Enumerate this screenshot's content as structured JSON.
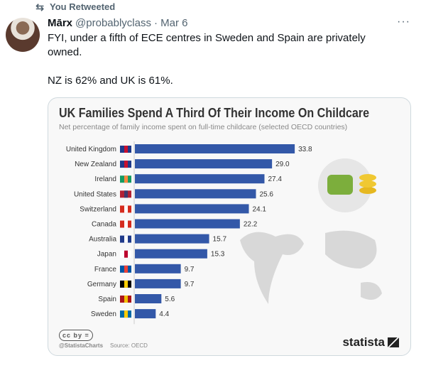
{
  "retweet": {
    "icon": "retweet-icon",
    "label": "You Retweeted"
  },
  "tweet": {
    "name": "Mārx",
    "handle": "@probablyclass",
    "date": "· Mar 6",
    "more": "···",
    "text": "FYI, under a fifth of ECE centres in Sweden and Spain are privately owned.\n\nNZ is 62% and UK is 61%."
  },
  "chart_data": {
    "type": "bar",
    "orientation": "horizontal",
    "title": "UK Families Spend A Third Of Their Income On Childcare",
    "subtitle": "Net percentage of family income spent on full-time childcare (selected OECD countries)",
    "categories": [
      "United Kingdom",
      "New Zealand",
      "Ireland",
      "United States",
      "Switzerland",
      "Canada",
      "Australia",
      "Japan",
      "France",
      "Germany",
      "Spain",
      "Sweden"
    ],
    "values": [
      33.8,
      29.0,
      27.4,
      25.6,
      24.1,
      22.2,
      15.7,
      15.3,
      9.7,
      9.7,
      5.6,
      4.4
    ],
    "labels": [
      "33.8",
      "29.0",
      "27.4",
      "25.6",
      "24.1",
      "22.2",
      "15.7",
      "15.3",
      "9.7",
      "9.7",
      "5.6",
      "4.4"
    ],
    "bar_color": "#3358a8",
    "source": "Source: OECD",
    "credit": "@StatistaCharts",
    "license_icons": "cc by =",
    "brand": "statista"
  }
}
